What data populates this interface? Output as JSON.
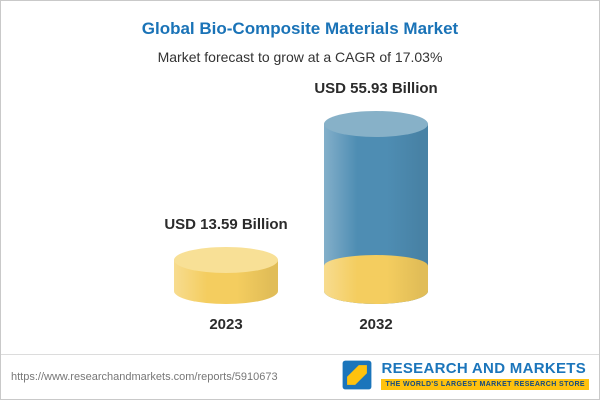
{
  "header": {
    "title": "Global Bio-Composite Materials Market",
    "subtitle": "Market forecast to grow at a CAGR of 17.03%"
  },
  "chart_data": {
    "type": "bar",
    "title": "Global Bio-Composite Materials Market",
    "subtitle": "Market forecast to grow at a CAGR of 17.03%",
    "categories": [
      "2023",
      "2032"
    ],
    "values": [
      13.59,
      55.93
    ],
    "value_labels": [
      "USD 13.59 Billion",
      "USD 55.93 Billion"
    ],
    "unit": "USD Billion",
    "cagr": "17.03%",
    "ylim": [
      0,
      60
    ],
    "legend": "none",
    "grid": "off",
    "colors": {
      "bar_2023_body": "#f4cd5f",
      "bar_2023_cap": "#f8e096",
      "bar_2032_body": "#4e8db3",
      "bar_2032_cap": "#87b1c8",
      "bar_2032_base_body": "#f4cd5f",
      "bar_2032_base_cap": "#f4cd5f",
      "title_blue": "#1a73b7"
    }
  },
  "footer": {
    "url": "https://www.researchandmarkets.com/reports/5910673",
    "logo_text": "RESEARCH AND MARKETS",
    "logo_tagline": "THE WORLD'S LARGEST MARKET RESEARCH STORE"
  }
}
